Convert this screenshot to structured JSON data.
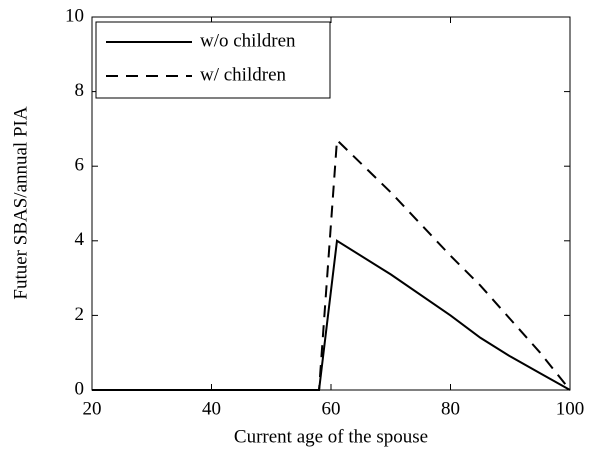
{
  "chart_data": {
    "type": "line",
    "xlabel": "Current age of the spouse",
    "ylabel": "Futuer SBAS/annual PIA",
    "x": [
      20,
      58,
      61,
      70,
      80,
      85,
      90,
      95,
      100
    ],
    "series": [
      {
        "name": "w/o children",
        "color": "#000000",
        "style": "solid",
        "values": [
          0,
          0,
          4.0,
          3.1,
          2.0,
          1.4,
          0.9,
          0.45,
          0
        ]
      },
      {
        "name": "w/ children",
        "color": "#000000",
        "style": "dashed",
        "values": [
          0,
          0,
          6.7,
          5.3,
          3.6,
          2.8,
          1.9,
          1.0,
          0
        ]
      }
    ],
    "xlim": [
      20,
      100
    ],
    "xticks": [
      20,
      40,
      60,
      80,
      100
    ],
    "ylim": [
      0,
      10
    ],
    "yticks": [
      0,
      2,
      4,
      6,
      8,
      10
    ],
    "legend": "upper left"
  }
}
